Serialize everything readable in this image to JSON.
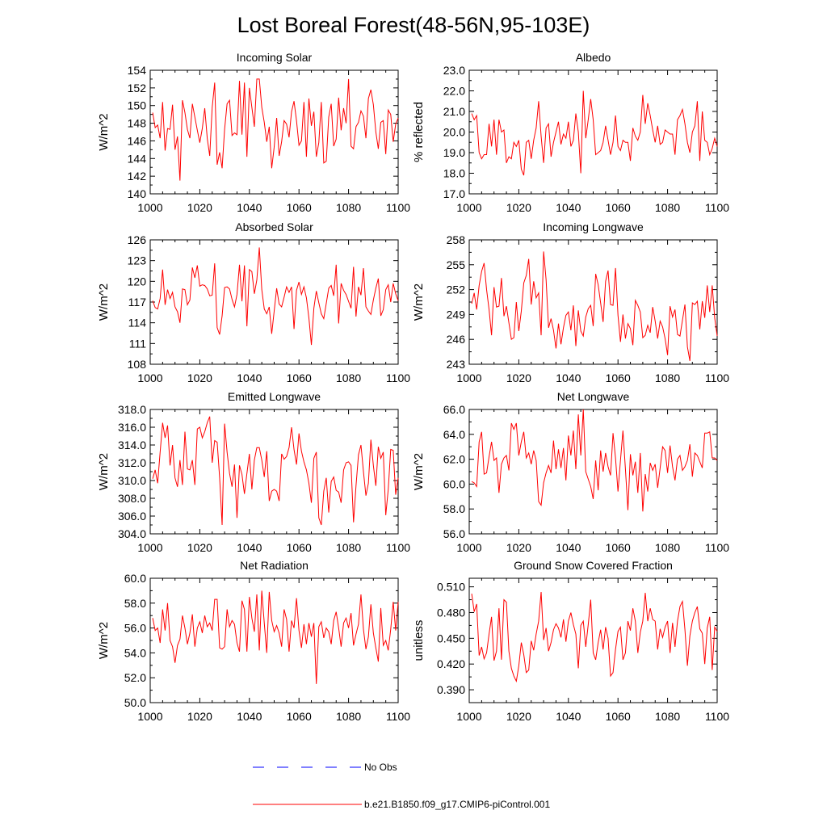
{
  "figure": {
    "title": "Lost Boreal Forest(48-56N,95-103E)",
    "line_color": "#ff0000",
    "obs_color": "#0000ff",
    "legend": [
      {
        "label": "No Obs",
        "style": "dashed",
        "color": "#0000ff"
      },
      {
        "label": "b.e21.B1850.f09_g17.CMIP6-piControl.001",
        "style": "solid",
        "color": "#ff0000"
      }
    ]
  },
  "chart_data": [
    {
      "type": "line",
      "title": "Incoming Solar",
      "ylabel": "W/m^2",
      "xlim": [
        1000,
        1100
      ],
      "ylim": [
        140,
        154
      ],
      "xticks": [
        1000,
        1020,
        1040,
        1060,
        1080,
        1100
      ],
      "yticks": [
        140,
        142,
        144,
        146,
        148,
        150,
        152,
        154
      ],
      "ytick_labels": [
        "140",
        "142",
        "144",
        "146",
        "148",
        "150",
        "152",
        "154"
      ],
      "x_start": 1001,
      "values": [
        149.2,
        147.5,
        147.8,
        146.3,
        150.4,
        144.9,
        147.4,
        147.3,
        150.1,
        145.0,
        146.5,
        141.5,
        150.6,
        149.2,
        147.3,
        146.3,
        150.2,
        148.7,
        147.2,
        145.8,
        147.4,
        149.7,
        146.3,
        144.3,
        149.8,
        152.6,
        143.3,
        144.7,
        142.9,
        147.3,
        150.2,
        150.6,
        146.6,
        146.9,
        146.7,
        152.8,
        146.7,
        152.6,
        144.2,
        152.0,
        149.8,
        147.6,
        153.0,
        153.0,
        149.8,
        148.1,
        145.9,
        147.6,
        142.9,
        145.3,
        148.6,
        144.3,
        145.9,
        148.3,
        147.9,
        146.4,
        149.3,
        150.5,
        148.3,
        145.5,
        146.0,
        150.4,
        144.2,
        150.8,
        147.7,
        149.3,
        144.2,
        145.8,
        150.4,
        143.5,
        143.7,
        148.7,
        150.2,
        145.4,
        146.2,
        150.9,
        147.2,
        149.7,
        148.0,
        153.0,
        145.4,
        145.1,
        147.6,
        148.1,
        149.4,
        148.8,
        146.3,
        150.8,
        151.8,
        150.1,
        147.0,
        145.1,
        148.1,
        148.3,
        144.5,
        149.5,
        149.0,
        145.9,
        147.9,
        148.6
      ]
    },
    {
      "type": "line",
      "title": "Albedo",
      "ylabel": "% reflected",
      "xlim": [
        1000,
        1100
      ],
      "ylim": [
        17.0,
        23.0
      ],
      "xticks": [
        1000,
        1020,
        1040,
        1060,
        1080,
        1100
      ],
      "yticks": [
        17,
        18,
        19,
        20,
        21,
        22,
        23
      ],
      "ytick_labels": [
        "17.0",
        "18.0",
        "19.0",
        "20.0",
        "21.0",
        "22.0",
        "23.0"
      ],
      "x_start": 1001,
      "values": [
        20.9,
        20.6,
        20.8,
        19.0,
        18.7,
        18.9,
        18.9,
        20.4,
        19.3,
        20.6,
        18.9,
        20.6,
        20.0,
        20.1,
        18.5,
        18.8,
        18.7,
        19.5,
        19.3,
        19.6,
        18.2,
        17.9,
        19.5,
        19.6,
        18.7,
        19.6,
        20.2,
        21.5,
        19.8,
        18.5,
        20.2,
        20.4,
        18.8,
        19.5,
        20.0,
        20.5,
        19.4,
        19.9,
        19.7,
        20.5,
        19.3,
        19.6,
        20.9,
        20.0,
        18.0,
        22.0,
        19.7,
        20.6,
        21.6,
        20.6,
        18.9,
        19.0,
        19.1,
        19.5,
        20.3,
        19.6,
        18.9,
        19.5,
        20.8,
        19.3,
        19.1,
        19.6,
        19.5,
        19.5,
        18.6,
        20.2,
        19.8,
        19.6,
        20.0,
        21.8,
        20.4,
        21.4,
        20.8,
        20.1,
        19.5,
        20.3,
        19.4,
        19.5,
        20.1,
        20.0,
        19.9,
        19.9,
        18.9,
        20.6,
        20.8,
        21.1,
        20.4,
        19.5,
        19.0,
        20.0,
        20.3,
        21.5,
        18.6,
        21.0,
        19.6,
        19.5,
        18.9,
        19.2,
        19.7,
        19.3
      ]
    },
    {
      "type": "line",
      "title": "Absorbed Solar",
      "ylabel": "W/m^2",
      "xlim": [
        1000,
        1100
      ],
      "ylim": [
        108,
        126
      ],
      "xticks": [
        1000,
        1020,
        1040,
        1060,
        1080,
        1100
      ],
      "yticks": [
        108,
        111,
        114,
        117,
        120,
        123,
        126
      ],
      "ytick_labels": [
        "108",
        "111",
        "114",
        "117",
        "120",
        "123",
        "126"
      ],
      "x_start": 1001,
      "values": [
        117.2,
        116.2,
        116.0,
        117.5,
        121.7,
        116.6,
        118.8,
        117.5,
        118.4,
        116.3,
        115.6,
        114.0,
        118.9,
        118.8,
        116.6,
        117.3,
        122.0,
        120.5,
        122.3,
        119.3,
        119.5,
        119.4,
        118.9,
        117.9,
        118.0,
        122.6,
        113.3,
        112.3,
        115.0,
        119.1,
        119.2,
        118.9,
        117.4,
        116.3,
        118.1,
        122.4,
        117.1,
        122.3,
        113.5,
        121.7,
        121.4,
        118.2,
        120.2,
        124.9,
        118.8,
        116.0,
        115.3,
        116.3,
        112.4,
        115.7,
        119.0,
        116.7,
        116.3,
        117.7,
        119.2,
        118.4,
        119.2,
        113.1,
        118.7,
        119.9,
        118.1,
        119.2,
        117.6,
        114.7,
        110.8,
        116.1,
        118.6,
        116.9,
        115.3,
        114.6,
        116.8,
        119.0,
        119.4,
        117.9,
        122.4,
        113.9,
        119.7,
        118.7,
        118.1,
        117.1,
        116.1,
        122.1,
        114.9,
        119.2,
        118.0,
        121.9,
        116.3,
        115.7,
        115.2,
        117.3,
        119.0,
        120.4,
        115.0,
        115.9,
        118.8,
        119.5,
        117.0,
        119.7,
        118.2,
        117.2
      ]
    },
    {
      "type": "line",
      "title": "Incoming Longwave",
      "ylabel": "W/m^2",
      "xlim": [
        1000,
        1100
      ],
      "ylim": [
        243,
        258
      ],
      "xticks": [
        1000,
        1020,
        1040,
        1060,
        1080,
        1100
      ],
      "yticks": [
        243,
        246,
        249,
        252,
        255,
        258
      ],
      "ytick_labels": [
        "243",
        "246",
        "249",
        "252",
        "255",
        "258"
      ],
      "x_start": 1001,
      "values": [
        250.3,
        251.6,
        249.6,
        252.5,
        254.2,
        255.2,
        252.0,
        249.6,
        246.5,
        252.3,
        249.9,
        250.0,
        253.4,
        248.8,
        250.0,
        248.0,
        246.0,
        246.2,
        250.5,
        247.0,
        249.4,
        252.8,
        253.7,
        255.7,
        250.2,
        253.0,
        251.0,
        251.6,
        246.5,
        256.6,
        253.2,
        247.4,
        248.5,
        247.1,
        244.9,
        247.9,
        245.4,
        247.4,
        248.9,
        249.3,
        247.1,
        250.1,
        245.2,
        249.5,
        247.0,
        246.4,
        248.7,
        249.7,
        250.1,
        247.6,
        253.9,
        252.6,
        250.4,
        248.1,
        253.0,
        254.3,
        250.2,
        250.1,
        254.6,
        248.9,
        245.7,
        249.0,
        246.1,
        247.9,
        247.3,
        245.3,
        250.7,
        250.1,
        249.3,
        246.2,
        246.5,
        247.7,
        246.8,
        249.9,
        248.2,
        246.1,
        248.2,
        247.5,
        246.1,
        244.1,
        250.0,
        248.7,
        249.6,
        246.6,
        246.4,
        248.3,
        250.2,
        245.1,
        243.4,
        250.4,
        250.2,
        250.6,
        247.2,
        250.6,
        248.6,
        252.5,
        249.3,
        252.5,
        248.6,
        246.4
      ]
    },
    {
      "type": "line",
      "title": "Emitted Longwave",
      "ylabel": "W/m^2",
      "xlim": [
        1000,
        1100
      ],
      "ylim": [
        304.0,
        318.0
      ],
      "xticks": [
        1000,
        1020,
        1040,
        1060,
        1080,
        1100
      ],
      "yticks": [
        304,
        306,
        308,
        310,
        312,
        314,
        316,
        318
      ],
      "ytick_labels": [
        "304.0",
        "306.0",
        "308.0",
        "310.0",
        "312.0",
        "314.0",
        "316.0",
        "318.0"
      ],
      "x_start": 1001,
      "values": [
        310.2,
        311.2,
        309.7,
        313.2,
        316.5,
        314.8,
        316.2,
        311.7,
        314.0,
        310.3,
        309.3,
        312.3,
        309.5,
        315.5,
        311.3,
        311.2,
        312.3,
        309.5,
        315.8,
        316.0,
        314.8,
        315.5,
        316.5,
        317.2,
        312.0,
        314.5,
        314.3,
        310.3,
        305.0,
        316.4,
        313.2,
        310.8,
        309.3,
        311.8,
        305.8,
        311.7,
        310.7,
        308.5,
        310.8,
        313.0,
        309.0,
        312.3,
        313.7,
        313.7,
        312.3,
        310.4,
        313.3,
        307.7,
        308.8,
        309.0,
        308.8,
        307.7,
        313.0,
        312.4,
        312.7,
        313.7,
        316.0,
        313.5,
        311.8,
        315.3,
        313.3,
        312.1,
        311.2,
        309.7,
        307.5,
        312.5,
        313.2,
        305.8,
        305.0,
        308.8,
        310.3,
        306.4,
        309.9,
        310.4,
        308.9,
        308.7,
        307.5,
        311.2,
        312.0,
        312.1,
        311.7,
        305.3,
        309.4,
        312.9,
        314.0,
        311.0,
        308.3,
        309.7,
        314.6,
        311.7,
        309.4,
        313.8,
        312.5,
        313.2,
        306.1,
        309.0,
        313.5,
        313.4,
        308.4,
        310.3
      ]
    },
    {
      "type": "line",
      "title": "Net Longwave",
      "ylabel": "W/m^2",
      "xlim": [
        1000,
        1100
      ],
      "ylim": [
        56.0,
        66.0
      ],
      "xticks": [
        1000,
        1020,
        1040,
        1060,
        1080,
        1100
      ],
      "yticks": [
        56,
        58,
        60,
        62,
        64,
        66
      ],
      "ytick_labels": [
        "56.0",
        "58.0",
        "60.0",
        "62.0",
        "64.0",
        "66.0"
      ],
      "x_start": 1001,
      "values": [
        60.2,
        60.1,
        59.8,
        63.4,
        64.2,
        60.8,
        60.9,
        62.2,
        63.4,
        61.9,
        62.1,
        59.3,
        61.6,
        62.1,
        62.3,
        61.1,
        64.9,
        64.4,
        64.9,
        62.3,
        63.4,
        64.2,
        62.1,
        62.5,
        61.6,
        62.7,
        61.9,
        58.6,
        58.3,
        60.1,
        60.9,
        61.5,
        60.9,
        63.5,
        61.2,
        62.8,
        61.3,
        62.9,
        60.3,
        63.9,
        62.3,
        64.3,
        61.2,
        65.6,
        62.3,
        66.0,
        61.0,
        60.4,
        59.8,
        58.8,
        61.9,
        59.5,
        62.7,
        61.0,
        62.5,
        61.4,
        60.7,
        64.1,
        62.1,
        59.4,
        61.9,
        64.3,
        61.2,
        57.9,
        62.4,
        60.7,
        61.8,
        59.3,
        62.5,
        57.8,
        60.8,
        59.4,
        61.7,
        61.1,
        61.6,
        59.7,
        61.3,
        63.0,
        62.7,
        60.9,
        63.1,
        61.4,
        60.3,
        62.0,
        62.3,
        61.1,
        61.4,
        61.9,
        63.2,
        60.6,
        62.5,
        62.3,
        61.8,
        61.3,
        64.1,
        64.1,
        64.2,
        62.1,
        62.1,
        61.9
      ]
    },
    {
      "type": "line",
      "title": "Net Radiation",
      "ylabel": "W/m^2",
      "xlim": [
        1000,
        1100
      ],
      "ylim": [
        50.0,
        60.0
      ],
      "xticks": [
        1000,
        1020,
        1040,
        1060,
        1080,
        1100
      ],
      "yticks": [
        50,
        52,
        54,
        56,
        58,
        60
      ],
      "ytick_labels": [
        "50.0",
        "52.0",
        "54.0",
        "56.0",
        "58.0",
        "60.0"
      ],
      "x_start": 1001,
      "values": [
        56.8,
        55.8,
        56.0,
        54.8,
        57.5,
        55.8,
        58.0,
        55.0,
        54.5,
        53.2,
        54.6,
        55.1,
        57.0,
        56.0,
        54.7,
        55.6,
        57.1,
        54.5,
        56.0,
        56.5,
        55.6,
        57.0,
        56.1,
        56.4,
        55.8,
        58.3,
        58.3,
        54.4,
        54.3,
        54.5,
        57.5,
        56.1,
        56.6,
        56.3,
        54.8,
        54.1,
        58.2,
        57.5,
        54.1,
        58.5,
        56.8,
        55.7,
        58.7,
        54.2,
        59.0,
        56.4,
        54.0,
        58.9,
        56.6,
        55.7,
        56.2,
        55.6,
        54.5,
        57.5,
        56.7,
        54.1,
        56.6,
        56.0,
        58.4,
        55.8,
        54.4,
        56.3,
        54.7,
        56.4,
        55.3,
        56.4,
        51.5,
        56.1,
        56.5,
        55.2,
        56.0,
        55.7,
        54.7,
        56.6,
        57.3,
        56.0,
        54.5,
        56.4,
        56.8,
        56.0,
        57.2,
        54.6,
        55.5,
        56.3,
        58.7,
        55.9,
        54.3,
        55.3,
        57.9,
        55.6,
        54.4,
        53.3,
        57.6,
        54.6,
        55.0,
        54.2,
        55.9,
        58.1,
        55.8,
        58.1
      ]
    },
    {
      "type": "line",
      "title": "Ground Snow Covered Fraction",
      "ylabel": "unitless",
      "xlim": [
        1000,
        1100
      ],
      "ylim": [
        0.375,
        0.52
      ],
      "xticks": [
        1000,
        1020,
        1040,
        1060,
        1080,
        1100
      ],
      "yticks": [
        0.39,
        0.42,
        0.45,
        0.48,
        0.51
      ],
      "ytick_labels": [
        "0.390",
        "0.420",
        "0.450",
        "0.480",
        "0.510"
      ],
      "x_start": 1001,
      "values": [
        0.502,
        0.481,
        0.49,
        0.43,
        0.44,
        0.426,
        0.433,
        0.455,
        0.475,
        0.424,
        0.435,
        0.485,
        0.425,
        0.495,
        0.492,
        0.435,
        0.415,
        0.406,
        0.4,
        0.418,
        0.445,
        0.431,
        0.41,
        0.413,
        0.447,
        0.436,
        0.455,
        0.47,
        0.504,
        0.448,
        0.462,
        0.435,
        0.445,
        0.46,
        0.467,
        0.462,
        0.451,
        0.472,
        0.446,
        0.47,
        0.48,
        0.466,
        0.455,
        0.415,
        0.465,
        0.47,
        0.44,
        0.466,
        0.495,
        0.433,
        0.425,
        0.445,
        0.46,
        0.437,
        0.463,
        0.45,
        0.406,
        0.41,
        0.437,
        0.458,
        0.463,
        0.425,
        0.433,
        0.47,
        0.459,
        0.485,
        0.47,
        0.433,
        0.457,
        0.47,
        0.503,
        0.47,
        0.485,
        0.472,
        0.47,
        0.437,
        0.461,
        0.451,
        0.463,
        0.47,
        0.433,
        0.468,
        0.44,
        0.47,
        0.487,
        0.493,
        0.46,
        0.418,
        0.453,
        0.47,
        0.48,
        0.487,
        0.461,
        0.456,
        0.42,
        0.462,
        0.475,
        0.413,
        0.463,
        0.458
      ]
    }
  ]
}
